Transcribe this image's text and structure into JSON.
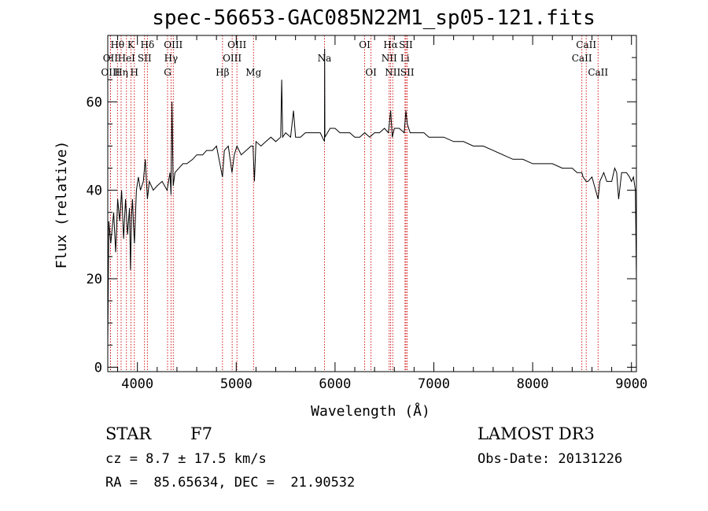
{
  "chart_data": {
    "type": "line",
    "title": "spec-56653-GAC085N22M1_sp05-121.fits",
    "xlabel": "Wavelength (Å)",
    "ylabel": "Flux (relative)",
    "xlim": [
      3700,
      9050
    ],
    "ylim": [
      -1,
      75
    ],
    "xticks": [
      4000,
      5000,
      6000,
      7000,
      8000,
      9000
    ],
    "yticks": [
      0,
      20,
      40,
      60
    ],
    "grid": false,
    "series": [
      {
        "x": [
          3700,
          3710,
          3730,
          3760,
          3780,
          3800,
          3820,
          3840,
          3860,
          3880,
          3900,
          3920,
          3930,
          3940,
          3950,
          3960,
          3970,
          3990,
          4010,
          4030,
          4060,
          4080,
          4101,
          4120,
          4160,
          4200,
          4250,
          4300,
          4330,
          4340,
          4350,
          4362,
          4380,
          4420,
          4460,
          4500,
          4560,
          4600,
          4660,
          4700,
          4760,
          4800,
          4861,
          4880,
          4920,
          4957,
          4980,
          5007,
          5050,
          5100,
          5150,
          5170,
          5184,
          5200,
          5250,
          5300,
          5350,
          5400,
          5450,
          5460,
          5470,
          5500,
          5550,
          5580,
          5600,
          5650,
          5700,
          5720,
          5750,
          5800,
          5850,
          5893,
          5895,
          5897,
          5950,
          6000,
          6050,
          6100,
          6150,
          6200,
          6250,
          6300,
          6350,
          6400,
          6450,
          6500,
          6540,
          6563,
          6580,
          6600,
          6650,
          6700,
          6717,
          6731,
          6760,
          6800,
          6850,
          6900,
          6950,
          7000,
          7100,
          7200,
          7300,
          7400,
          7500,
          7600,
          7700,
          7800,
          7900,
          8000,
          8100,
          8200,
          8300,
          8400,
          8450,
          8498,
          8510,
          8542,
          8560,
          8600,
          8662,
          8680,
          8700,
          8720,
          8750,
          8800,
          8830,
          8850,
          8870,
          8900,
          8950,
          8980,
          9000,
          9020,
          9040,
          9050
        ],
        "y": [
          5,
          33,
          28,
          35,
          26,
          38,
          33,
          40,
          29,
          38,
          30,
          36,
          22,
          34,
          38,
          32,
          28,
          40,
          43,
          40,
          42,
          47,
          38,
          42,
          40,
          41,
          42,
          40,
          44,
          39,
          60,
          41,
          44,
          45,
          46,
          46,
          47,
          48,
          48,
          49,
          49,
          50,
          43,
          49,
          50,
          44,
          48,
          50,
          48,
          49,
          50,
          50,
          42,
          51,
          50,
          51,
          52,
          51,
          52,
          65,
          52,
          53,
          52,
          58,
          52,
          52,
          53,
          53,
          53,
          53,
          53,
          51,
          72,
          52,
          54,
          54,
          53,
          53,
          53,
          52,
          52,
          53,
          52,
          53,
          53,
          54,
          53,
          58,
          52,
          54,
          54,
          53,
          58,
          55,
          53,
          53,
          53,
          53,
          52,
          52,
          52,
          51,
          51,
          50,
          50,
          49,
          48,
          47,
          47,
          46,
          46,
          46,
          45,
          45,
          44,
          44,
          43,
          42,
          42,
          43,
          38,
          42,
          43,
          44,
          42,
          42,
          45,
          44,
          38,
          44,
          44,
          43,
          42,
          43,
          40,
          20
        ]
      }
    ],
    "lines": [
      {
        "name": "Hθ",
        "wl": 3798,
        "row": 1
      },
      {
        "name": "OII",
        "wl": 3727,
        "row": 2
      },
      {
        "name": "OIII",
        "wl": 3727,
        "row": 3
      },
      {
        "name": "Hη",
        "wl": 3835,
        "row": 3
      },
      {
        "name": "HeI",
        "wl": 3889,
        "row": 2
      },
      {
        "name": "K",
        "wl": 3934,
        "row": 1
      },
      {
        "name": "H",
        "wl": 3969,
        "row": 3
      },
      {
        "name": "Hδ",
        "wl": 4101,
        "row": 1
      },
      {
        "name": "SII",
        "wl": 4072,
        "row": 2
      },
      {
        "name": "OIII",
        "wl": 4363,
        "row": 1
      },
      {
        "name": "Hγ",
        "wl": 4340,
        "row": 2
      },
      {
        "name": "G",
        "wl": 4305,
        "row": 3
      },
      {
        "name": "Hβ",
        "wl": 4861,
        "row": 3
      },
      {
        "name": "OIII",
        "wl": 5007,
        "row": 1
      },
      {
        "name": "OIII",
        "wl": 4959,
        "row": 2
      },
      {
        "name": "Mg",
        "wl": 5175,
        "row": 3
      },
      {
        "name": "Na",
        "wl": 5893,
        "row": 2
      },
      {
        "name": "OI",
        "wl": 6300,
        "row": 1
      },
      {
        "name": "OI",
        "wl": 6364,
        "row": 3
      },
      {
        "name": "Hα",
        "wl": 6563,
        "row": 1
      },
      {
        "name": "NII",
        "wl": 6548,
        "row": 2
      },
      {
        "name": "NII",
        "wl": 6584,
        "row": 3
      },
      {
        "name": "SII",
        "wl": 6717,
        "row": 1
      },
      {
        "name": "Li",
        "wl": 6708,
        "row": 2
      },
      {
        "name": "SII",
        "wl": 6731,
        "row": 3
      },
      {
        "name": "CaII",
        "wl": 8542,
        "row": 1
      },
      {
        "name": "CaII",
        "wl": 8498,
        "row": 2
      },
      {
        "name": "CaII",
        "wl": 8662,
        "row": 3
      }
    ]
  },
  "info": {
    "class": "STAR",
    "subclass": "F7",
    "survey": "LAMOST DR3",
    "cz": "cz = 8.7 ± 17.5 km/s",
    "obs_date": "Obs-Date: 20131226",
    "coords": "RA =  85.65634, DEC =  21.90532"
  }
}
